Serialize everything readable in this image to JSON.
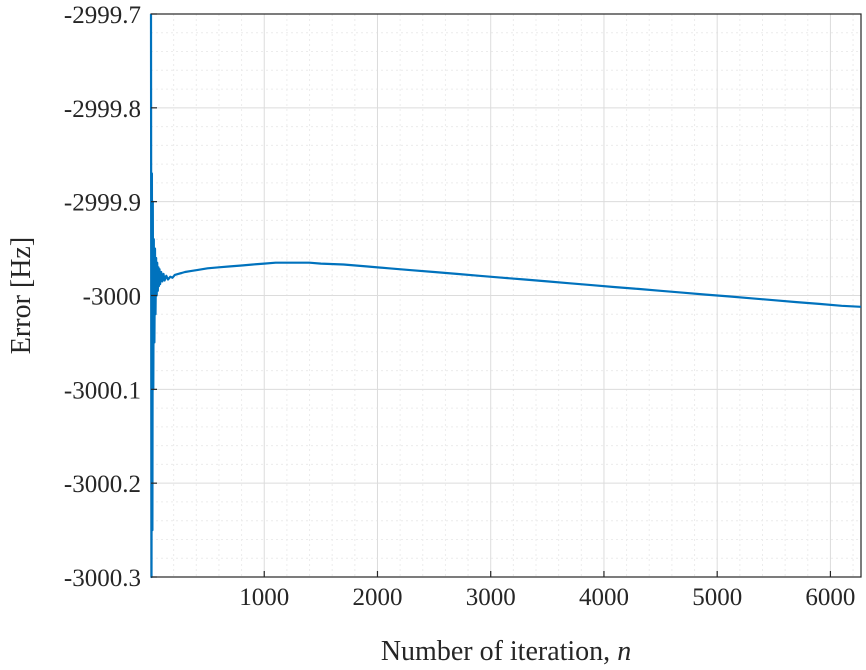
{
  "chart_data": {
    "type": "line",
    "title": "",
    "xlabel": "Number of iteration, ",
    "xlabel_var": "n",
    "ylabel": "Error [Hz]",
    "xlim": [
      0,
      6270
    ],
    "ylim": [
      -3000.3,
      -2999.7
    ],
    "xticks": [
      1000,
      2000,
      3000,
      4000,
      5000,
      6000
    ],
    "xtick_labels": [
      "1000",
      "2000",
      "3000",
      "4000",
      "5000",
      "6000"
    ],
    "yticks": [
      -2999.7,
      -2999.8,
      -2999.9,
      -3000,
      -3000.1,
      -3000.2,
      -3000.3
    ],
    "ytick_labels": [
      "-2999.7",
      "-2999.8",
      "-2999.9",
      "-3000",
      "-3000.1",
      "-3000.2",
      "-3000.3"
    ],
    "grid": true,
    "minor_grid": true,
    "series": [
      {
        "color": "#0072BD",
        "x": [
          0,
          4,
          8,
          12,
          16,
          20,
          25,
          30,
          35,
          40,
          45,
          50,
          55,
          60,
          65,
          70,
          75,
          80,
          90,
          100,
          110,
          120,
          135,
          150,
          170,
          190,
          210,
          240,
          270,
          300,
          350,
          400,
          500,
          600,
          700,
          800,
          900,
          1000,
          1100,
          1200,
          1300,
          1400,
          1500,
          1700,
          1900,
          2100,
          2300,
          2500,
          2700,
          2900,
          3100,
          3300,
          3500,
          3700,
          3900,
          4100,
          4300,
          4500,
          4700,
          4900,
          5100,
          5300,
          5500,
          5700,
          5900,
          6100,
          6270
        ],
        "y": [
          -2999.7,
          -3000.3,
          -2999.87,
          -3000.25,
          -2999.9,
          -3000.1,
          -2999.94,
          -3000.05,
          -2999.95,
          -3000.02,
          -2999.96,
          -3000.0,
          -2999.965,
          -2999.995,
          -2999.97,
          -2999.99,
          -2999.972,
          -2999.988,
          -2999.975,
          -2999.985,
          -2999.977,
          -2999.984,
          -2999.979,
          -2999.983,
          -2999.98,
          -2999.981,
          -2999.978,
          -2999.977,
          -2999.976,
          -2999.975,
          -2999.974,
          -2999.973,
          -2999.971,
          -2999.97,
          -2999.969,
          -2999.968,
          -2999.967,
          -2999.966,
          -2999.965,
          -2999.965,
          -2999.965,
          -2999.965,
          -2999.966,
          -2999.967,
          -2999.969,
          -2999.971,
          -2999.973,
          -2999.975,
          -2999.977,
          -2999.979,
          -2999.981,
          -2999.983,
          -2999.985,
          -2999.987,
          -2999.989,
          -2999.991,
          -2999.993,
          -2999.995,
          -2999.997,
          -2999.999,
          -3000.001,
          -3000.003,
          -3000.005,
          -3000.007,
          -3000.009,
          -3000.011,
          -3000.012
        ]
      }
    ]
  }
}
